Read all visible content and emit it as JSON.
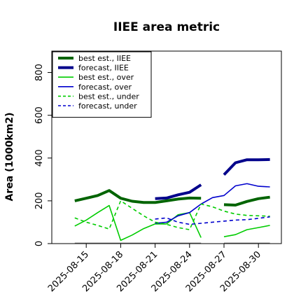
{
  "chart_data": {
    "type": "line",
    "title": "IIEE area metric",
    "xlabel": "",
    "ylabel": "Area (1000km2)",
    "ylim": [
      0,
      900
    ],
    "xlim": [
      "2025-08-12",
      "2025-09-01"
    ],
    "x_tick_labels": [
      "2025-08-15",
      "2025-08-18",
      "2025-08-21",
      "2025-08-24",
      "2025-08-27",
      "2025-08-30"
    ],
    "x_tick_colors": [
      "#000000",
      "#000000",
      "#228B22",
      "#000000",
      "#000000",
      "#000000"
    ],
    "y_ticks": [
      0,
      200,
      400,
      600,
      800
    ],
    "grid": false,
    "legend_position": "top-left",
    "series": [
      {
        "name": "best est., IIEE",
        "color": "#006400",
        "style": "solid",
        "width": "thick",
        "x": [
          "2025-08-14",
          "2025-08-15",
          "2025-08-16",
          "2025-08-17",
          "2025-08-18",
          "2025-08-19",
          "2025-08-20",
          "2025-08-21",
          "2025-08-22",
          "2025-08-23",
          "2025-08-24",
          "2025-08-25"
        ],
        "values": [
          200,
          212,
          225,
          248,
          212,
          198,
          192,
          192,
          200,
          208,
          213,
          212
        ]
      },
      {
        "name": "best est., IIEE",
        "color": "#006400",
        "style": "solid",
        "width": "thick",
        "x": [
          "2025-08-27",
          "2025-08-28",
          "2025-08-29",
          "2025-08-30",
          "2025-08-31"
        ],
        "values": [
          182,
          180,
          197,
          210,
          217
        ]
      },
      {
        "name": "forecast, IIEE",
        "color": "#00008B",
        "style": "solid",
        "width": "thick",
        "x": [
          "2025-08-21",
          "2025-08-22",
          "2025-08-23",
          "2025-08-24",
          "2025-08-25"
        ],
        "values": [
          210,
          213,
          228,
          240,
          275
        ]
      },
      {
        "name": "forecast, IIEE",
        "color": "#00008B",
        "style": "solid",
        "width": "thick",
        "x": [
          "2025-08-27",
          "2025-08-28",
          "2025-08-29",
          "2025-08-30",
          "2025-08-31"
        ],
        "values": [
          322,
          378,
          392,
          392,
          393
        ]
      },
      {
        "name": "best est., over",
        "color": "#00CC00",
        "style": "solid",
        "width": "thin",
        "x": [
          "2025-08-14",
          "2025-08-15",
          "2025-08-16",
          "2025-08-17",
          "2025-08-18",
          "2025-08-19",
          "2025-08-20",
          "2025-08-21",
          "2025-08-22",
          "2025-08-23",
          "2025-08-24",
          "2025-08-25"
        ],
        "values": [
          82,
          110,
          145,
          178,
          15,
          40,
          70,
          92,
          92,
          135,
          145,
          28
        ]
      },
      {
        "name": "best est., over",
        "color": "#00CC00",
        "style": "solid",
        "width": "thin",
        "x": [
          "2025-08-27",
          "2025-08-28",
          "2025-08-29",
          "2025-08-30",
          "2025-08-31"
        ],
        "values": [
          32,
          42,
          65,
          75,
          85
        ]
      },
      {
        "name": "forecast, over",
        "color": "#0000CD",
        "style": "solid",
        "width": "thin",
        "x": [
          "2025-08-21",
          "2025-08-22",
          "2025-08-23",
          "2025-08-24",
          "2025-08-25",
          "2025-08-26",
          "2025-08-27",
          "2025-08-28",
          "2025-08-29",
          "2025-08-30",
          "2025-08-31"
        ],
        "values": [
          95,
          100,
          130,
          145,
          185,
          215,
          225,
          270,
          280,
          268,
          265
        ]
      },
      {
        "name": "best est., under",
        "color": "#00CC00",
        "style": "dashed",
        "width": "thin",
        "x": [
          "2025-08-14",
          "2025-08-15",
          "2025-08-16",
          "2025-08-17",
          "2025-08-18",
          "2025-08-19",
          "2025-08-20",
          "2025-08-21",
          "2025-08-22",
          "2025-08-23",
          "2025-08-24",
          "2025-08-25",
          "2025-08-26",
          "2025-08-27",
          "2025-08-28",
          "2025-08-29",
          "2025-08-30",
          "2025-08-31"
        ],
        "values": [
          120,
          100,
          85,
          68,
          200,
          165,
          130,
          100,
          90,
          75,
          65,
          185,
          172,
          152,
          138,
          132,
          130,
          128
        ]
      },
      {
        "name": "forecast, under",
        "color": "#0000CD",
        "style": "dashed",
        "width": "thin",
        "x": [
          "2025-08-21",
          "2025-08-22",
          "2025-08-23",
          "2025-08-24",
          "2025-08-25",
          "2025-08-26",
          "2025-08-27",
          "2025-08-28",
          "2025-08-29",
          "2025-08-30",
          "2025-08-31"
        ],
        "values": [
          115,
          120,
          100,
          90,
          95,
          100,
          105,
          110,
          112,
          118,
          125
        ]
      },
      {
        "name": "",
        "color": "#808080",
        "style": "solid",
        "width": "thin",
        "x": [
          "2025-08-14",
          "2025-08-25"
        ],
        "values": [
          2,
          2
        ]
      },
      {
        "name": "",
        "color": "#808080",
        "style": "solid",
        "width": "thin",
        "x": [
          "2025-08-27",
          "2025-08-31"
        ],
        "values": [
          2,
          2
        ]
      }
    ],
    "legend": [
      {
        "label": "best est., IIEE",
        "color": "#006400",
        "style": "solid",
        "width": "thick"
      },
      {
        "label": "forecast, IIEE",
        "color": "#00008B",
        "style": "solid",
        "width": "thick"
      },
      {
        "label": "best est., over",
        "color": "#00CC00",
        "style": "solid",
        "width": "thin"
      },
      {
        "label": "forecast, over",
        "color": "#0000CD",
        "style": "solid",
        "width": "thin"
      },
      {
        "label": "best est., under",
        "color": "#00CC00",
        "style": "dashed",
        "width": "thin"
      },
      {
        "label": "forecast, under",
        "color": "#0000CD",
        "style": "dashed",
        "width": "thin"
      }
    ]
  }
}
